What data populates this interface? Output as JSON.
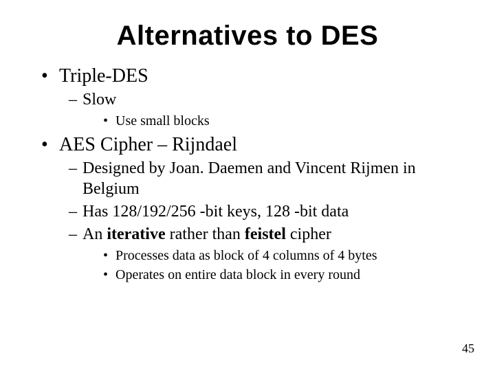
{
  "slide": {
    "title": "Alternatives to DES",
    "page_number": "45",
    "colors": {
      "background": "#ffffff",
      "text": "#000000"
    },
    "fonts": {
      "title_family": "Comic Sans MS",
      "title_size_pt": 40,
      "title_weight": "bold",
      "body_family": "Times New Roman",
      "level1_size_pt": 28,
      "level2_size_pt": 24,
      "level3_size_pt": 20
    },
    "bullets": {
      "level1_marker": "•",
      "level2_marker": "–",
      "level3_marker": "•"
    },
    "items": [
      {
        "text": "Triple-DES",
        "children": [
          {
            "text": "Slow",
            "children": [
              {
                "text": "Use small blocks"
              }
            ]
          }
        ]
      },
      {
        "text": "AES Cipher – Rijndael",
        "children": [
          {
            "text": "Designed by Joan. Daemen and Vincent Rijmen in Belgium"
          },
          {
            "text": "Has 128/192/256 -bit keys, 128 -bit data"
          },
          {
            "text_prefix": "An ",
            "bold1": "iterative",
            "text_mid": " rather than ",
            "bold2": "feistel",
            "text_suffix": " cipher",
            "children": [
              {
                "text": "Processes data as block of 4 columns of 4 bytes"
              },
              {
                "text": "Operates on entire data block in every round"
              }
            ]
          }
        ]
      }
    ]
  }
}
